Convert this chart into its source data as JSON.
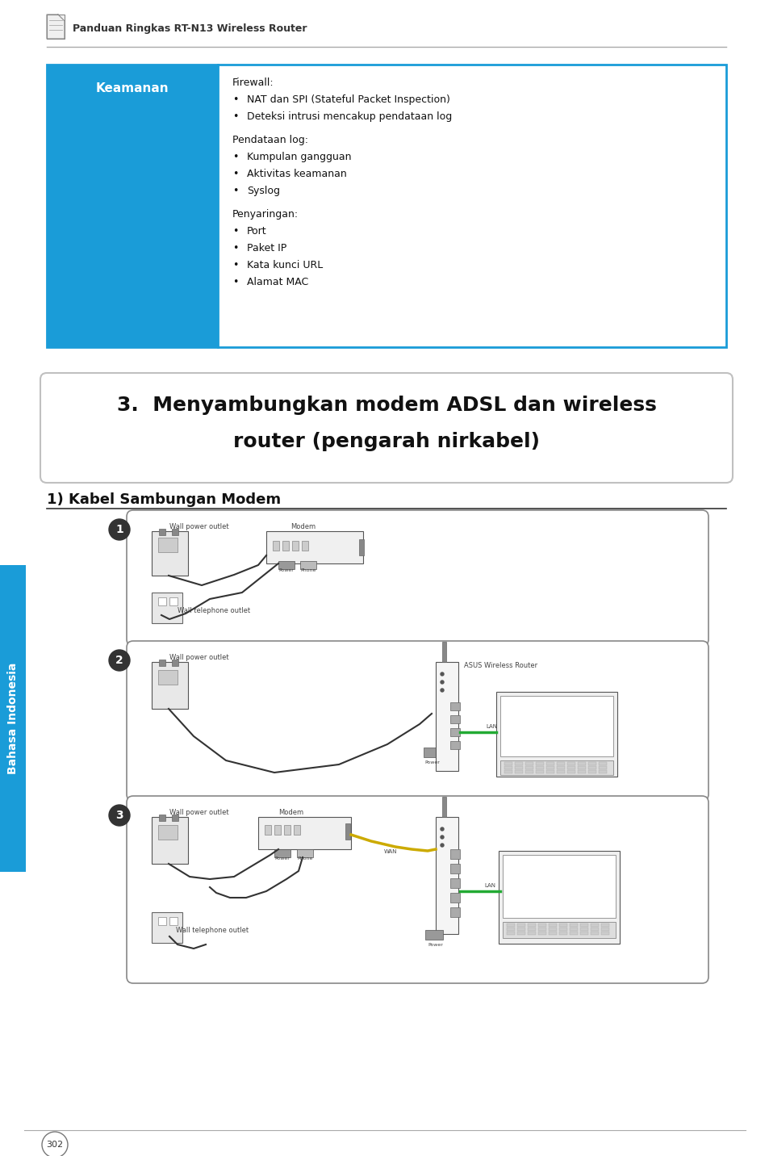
{
  "bg_color": "#ffffff",
  "header_text": "Panduan Ringkas RT-N13 Wireless Router",
  "table_header_bg": "#1a9cd8",
  "table_header_text": "Keamanan",
  "table_header_text_color": "#ffffff",
  "table_border_color": "#1a9cd8",
  "table_content": [
    [
      "Firewall:",
      false,
      false
    ],
    [
      "•",
      "NAT dan SPI (Stateful Packet Inspection)",
      true
    ],
    [
      "•",
      "Deteksi intrusi mencakup pendataan log",
      true
    ],
    [
      "",
      "",
      false
    ],
    [
      "Pendataan log:",
      false,
      false
    ],
    [
      "•",
      "Kumpulan gangguan",
      true
    ],
    [
      "•",
      "Aktivitas keamanan",
      true
    ],
    [
      "•",
      "Syslog",
      true
    ],
    [
      "",
      "",
      false
    ],
    [
      "Penyaringan:",
      false,
      false
    ],
    [
      "•",
      "Port",
      true
    ],
    [
      "•",
      "Paket IP",
      true
    ],
    [
      "•",
      "Kata kunci URL",
      true
    ],
    [
      "•",
      "Alamat MAC",
      true
    ]
  ],
  "section_title_line1": "3.  Menyambungkan modem ADSL dan wireless",
  "section_title_line2": "router (pengarah nirkabel)",
  "subsection_title": "1) Kabel Sambungan Modem",
  "sidebar_text": "Bahasa Indonesia",
  "sidebar_bg": "#1a9cd8",
  "footer_page": "302"
}
